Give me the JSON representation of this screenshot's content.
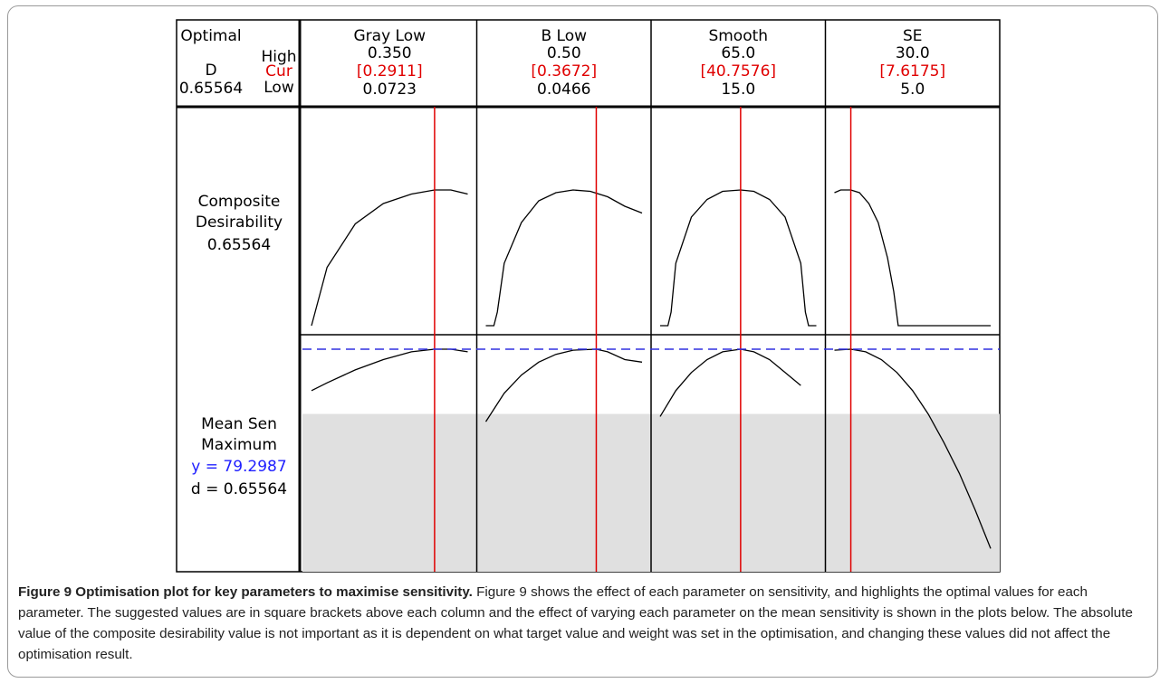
{
  "header": {
    "optimal_label": "Optimal",
    "d_label": "D",
    "d_value": "0.65564",
    "high_label": "High",
    "cur_label": "Cur",
    "low_label": "Low"
  },
  "rows": {
    "composite": {
      "line1": "Composite",
      "line2": "Desirability",
      "value": "0.65564"
    },
    "response": {
      "name": "Mean Sen",
      "goal": "Maximum",
      "y_text": "y = 79.2987",
      "d_text": "d = 0.65564"
    }
  },
  "chart_data": {
    "type": "line",
    "title": "",
    "factors": [
      {
        "name": "Gray Low",
        "high": "0.350",
        "cur": "[0.2911]",
        "low": "0.0723",
        "high_num": 0.35,
        "low_num": 0.0723,
        "cur_num": 0.2911
      },
      {
        "name": "B Low",
        "high": "0.50",
        "cur": "[0.3672]",
        "low": "0.0466",
        "high_num": 0.5,
        "low_num": 0.0466,
        "cur_num": 0.3672
      },
      {
        "name": "Smooth",
        "high": "65.0",
        "cur": "[40.7576]",
        "low": "15.0",
        "high_num": 65.0,
        "low_num": 15.0,
        "cur_num": 40.7576
      },
      {
        "name": "SE",
        "high": "30.0",
        "cur": "[7.6175]",
        "low": "5.0",
        "high_num": 30.0,
        "low_num": 5.0,
        "cur_num": 7.6175
      }
    ],
    "composite_desirability": [
      [
        [
          0.0723,
          0.0
        ],
        [
          0.1,
          0.43
        ],
        [
          0.15,
          0.75
        ],
        [
          0.2,
          0.9
        ],
        [
          0.25,
          0.97
        ],
        [
          0.2911,
          1.0
        ],
        [
          0.32,
          1.0
        ],
        [
          0.35,
          0.97
        ]
      ],
      [
        [
          0.0466,
          0.0
        ],
        [
          0.07,
          0.0
        ],
        [
          0.08,
          0.1
        ],
        [
          0.1,
          0.46
        ],
        [
          0.15,
          0.76
        ],
        [
          0.2,
          0.92
        ],
        [
          0.25,
          0.98
        ],
        [
          0.3,
          1.0
        ],
        [
          0.35,
          0.99
        ],
        [
          0.4,
          0.95
        ],
        [
          0.45,
          0.88
        ],
        [
          0.5,
          0.83
        ]
      ],
      [
        [
          15.0,
          0.0
        ],
        [
          17.5,
          0.0
        ],
        [
          18.5,
          0.1
        ],
        [
          20.0,
          0.46
        ],
        [
          25.0,
          0.8
        ],
        [
          30.0,
          0.93
        ],
        [
          35.0,
          0.99
        ],
        [
          40.7576,
          1.0
        ],
        [
          45.0,
          0.99
        ],
        [
          50.0,
          0.93
        ],
        [
          55.0,
          0.8
        ],
        [
          60.0,
          0.46
        ],
        [
          61.5,
          0.1
        ],
        [
          62.5,
          0.0
        ],
        [
          65.0,
          0.0
        ]
      ],
      [
        [
          5.0,
          0.98
        ],
        [
          6.0,
          1.0
        ],
        [
          7.6175,
          1.0
        ],
        [
          9.0,
          0.98
        ],
        [
          10.5,
          0.9
        ],
        [
          12.0,
          0.76
        ],
        [
          13.5,
          0.5
        ],
        [
          14.5,
          0.25
        ],
        [
          15.2,
          0.0
        ],
        [
          30.0,
          0.0
        ]
      ]
    ],
    "mean_sen_desirability": [
      [
        [
          0.0723,
          0.92
        ],
        [
          0.1,
          0.935
        ],
        [
          0.15,
          0.96
        ],
        [
          0.2,
          0.98
        ],
        [
          0.25,
          0.995
        ],
        [
          0.2911,
          1.0
        ],
        [
          0.32,
          1.0
        ],
        [
          0.35,
          0.995
        ]
      ],
      [
        [
          0.0466,
          0.86
        ],
        [
          0.1,
          0.915
        ],
        [
          0.15,
          0.95
        ],
        [
          0.2,
          0.975
        ],
        [
          0.25,
          0.99
        ],
        [
          0.3,
          0.998
        ],
        [
          0.3672,
          1.0
        ],
        [
          0.4,
          0.995
        ],
        [
          0.45,
          0.98
        ],
        [
          0.5,
          0.975
        ]
      ],
      [
        [
          15.0,
          0.87
        ],
        [
          20.0,
          0.92
        ],
        [
          25.0,
          0.955
        ],
        [
          30.0,
          0.98
        ],
        [
          35.0,
          0.995
        ],
        [
          40.7576,
          1.0
        ],
        [
          45.0,
          0.995
        ],
        [
          50.0,
          0.98
        ],
        [
          55.0,
          0.955
        ],
        [
          60.0,
          0.93
        ]
      ],
      [
        [
          5.0,
          0.998
        ],
        [
          7.6175,
          1.0
        ],
        [
          10.0,
          0.995
        ],
        [
          12.5,
          0.98
        ],
        [
          15.0,
          0.955
        ],
        [
          17.5,
          0.92
        ],
        [
          20.0,
          0.875
        ],
        [
          22.5,
          0.82
        ],
        [
          25.0,
          0.76
        ],
        [
          27.5,
          0.69
        ],
        [
          30.0,
          0.615
        ]
      ]
    ],
    "target_line": 1.0,
    "shaded_region_below": 0.875,
    "colors": {
      "current_line": "#e00000",
      "target_line": "#3030e0",
      "cur_text": "#e00000",
      "y_text": "#2020ff",
      "shade": "#e0e0e0",
      "curve": "#000000"
    }
  },
  "caption": {
    "title": "Figure 9 Optimisation plot for key parameters to maximise sensitivity.",
    "body": "Figure 9 shows the effect of each parameter on sensitivity, and highlights the optimal values for each parameter. The suggested values are in square brackets above each column and the effect of varying each parameter on the mean sensitivity is shown in the plots below. The absolute value of the composite desirability value is not important as it is dependent on what target value and weight was set in the optimisation, and changing these values did not affect the optimisation result."
  }
}
